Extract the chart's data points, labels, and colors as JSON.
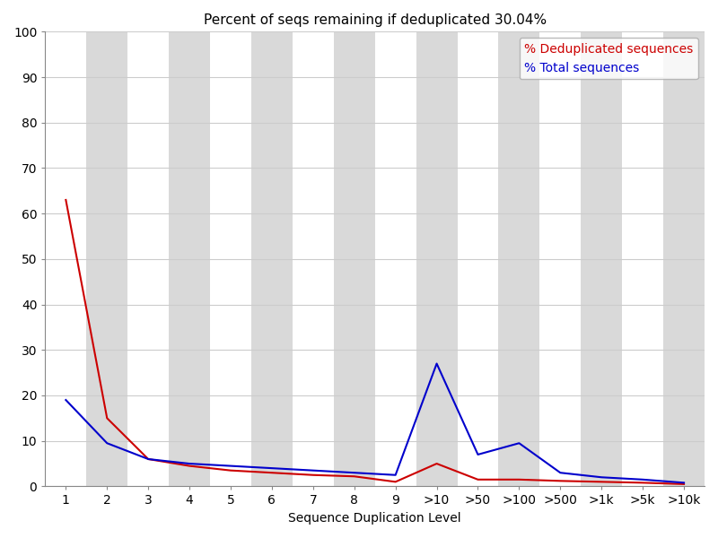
{
  "title": "Percent of seqs remaining if deduplicated 30.04%",
  "xlabel": "Sequence Duplication Level",
  "xlabels": [
    "1",
    "2",
    "3",
    "4",
    "5",
    "6",
    "7",
    "8",
    "9",
    ">10",
    ">50",
    ">100",
    ">500",
    ">1k",
    ">5k",
    ">10k"
  ],
  "red_values": [
    63.0,
    15.0,
    6.0,
    4.5,
    3.5,
    3.0,
    2.5,
    2.2,
    1.0,
    5.0,
    1.5,
    1.5,
    1.2,
    1.0,
    0.8,
    0.5
  ],
  "blue_values": [
    19.0,
    9.5,
    6.0,
    5.0,
    4.5,
    4.0,
    3.5,
    3.0,
    2.5,
    27.0,
    7.0,
    9.5,
    3.0,
    2.0,
    1.5,
    0.8
  ],
  "red_color": "#cc0000",
  "blue_color": "#0000cc",
  "legend_red": "% Deduplicated sequences",
  "legend_blue": "% Total sequences",
  "ylim": [
    0,
    100
  ],
  "yticks": [
    0,
    10,
    20,
    30,
    40,
    50,
    60,
    70,
    80,
    90,
    100
  ],
  "bg_color_light": "#d9d9d9",
  "bg_color_white": "#ffffff",
  "grid_color": "#cccccc",
  "title_fontsize": 11,
  "axis_fontsize": 10,
  "tick_fontsize": 10,
  "legend_fontsize": 10,
  "figure_width": 8.0,
  "figure_height": 6.0,
  "figure_dpi": 100
}
